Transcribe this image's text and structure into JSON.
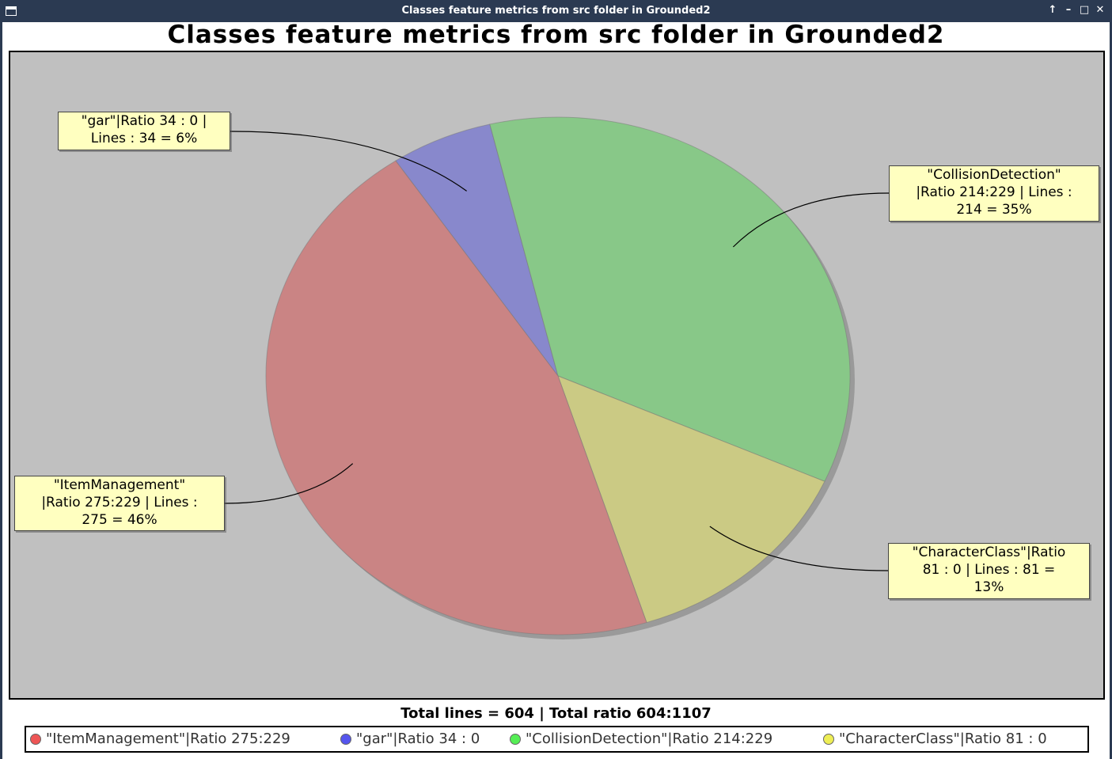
{
  "window": {
    "title": "Classes feature metrics from src folder in  Grounded2",
    "controls": [
      "↑",
      "–",
      "□",
      "✕"
    ]
  },
  "colors": {
    "background": "#c0c0c0",
    "label_bg": "#ffffc0",
    "ItemManagement": "#ca8484",
    "gar": "#8888cc",
    "CollisionDetection": "#88c888",
    "CharacterClass": "#cbca84",
    "legend_ItemManagement": "#ee5555",
    "legend_gar": "#5555ee",
    "legend_CollisionDetection": "#55ee55",
    "legend_CharacterClass": "#eeee55"
  },
  "chart_data": {
    "type": "pie",
    "title": "Classes feature metrics from src folder in  Grounded2",
    "slices": [
      {
        "name": "\"ItemManagement\"|Ratio 275:229",
        "value": 275,
        "percent": 46,
        "label": [
          "\"ItemManagement\"",
          "|Ratio 275:229  | Lines :",
          "275 = 46%"
        ]
      },
      {
        "name": "\"gar\"|Ratio 34 : 0",
        "value": 34,
        "percent": 6,
        "label": [
          "\"gar\"|Ratio 34 : 0  |",
          "Lines : 34 = 6%"
        ]
      },
      {
        "name": "\"CollisionDetection\"|Ratio 214:229",
        "value": 214,
        "percent": 35,
        "label": [
          "\"CollisionDetection\"",
          "|Ratio 214:229  | Lines :",
          "214 = 35%"
        ]
      },
      {
        "name": "\"CharacterClass\"|Ratio 81 : 0",
        "value": 81,
        "percent": 13,
        "label": [
          "\"CharacterClass\"|Ratio",
          "81 : 0  | Lines : 81 =",
          "13%"
        ]
      }
    ],
    "total_text": "Total lines = 604 | Total ratio 604:1107",
    "legend_position": "bottom"
  }
}
